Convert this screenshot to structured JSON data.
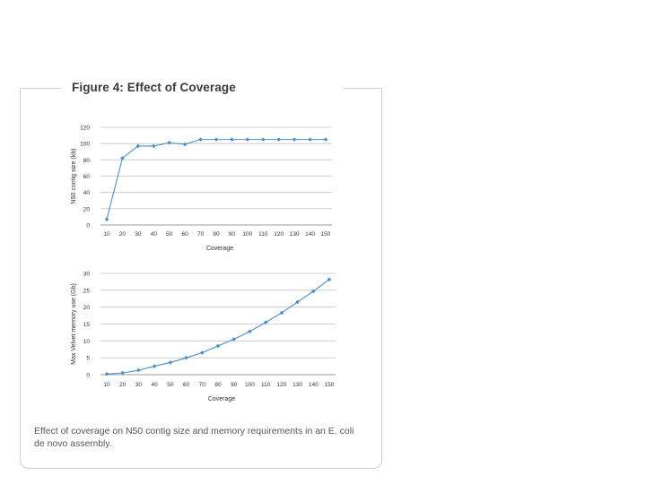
{
  "figure": {
    "title": "Figure 4: Effect of Coverage",
    "caption": "Effect of coverage on N50 contig size and memory requirements in an E. coli de novo assembly."
  },
  "colors": {
    "series": "#4a90c2",
    "grid": "#c4c4c4",
    "frame": "#cfcfcf"
  },
  "chart_data": [
    {
      "type": "line",
      "xlabel": "Coverage",
      "ylabel": "N50 contig size (kb)",
      "x": [
        10,
        20,
        30,
        40,
        50,
        60,
        70,
        80,
        90,
        100,
        110,
        120,
        130,
        140,
        150
      ],
      "x_tick_labels": [
        "10",
        "20",
        "30",
        "40",
        "50",
        "60",
        "70",
        "80",
        "90",
        "100",
        "110",
        "120",
        "130",
        "140",
        "150"
      ],
      "ylim": [
        0,
        120
      ],
      "y_ticks": [
        0,
        20,
        40,
        60,
        80,
        100,
        120
      ],
      "grid": true,
      "series": [
        {
          "values": [
            7,
            82,
            97,
            97,
            101,
            99,
            105,
            105,
            105,
            105,
            105,
            105,
            105,
            105,
            105
          ]
        }
      ]
    },
    {
      "type": "line",
      "xlabel": "Coverage",
      "ylabel": "Max Velvet memory use (Gb)",
      "x": [
        10,
        20,
        30,
        40,
        50,
        60,
        70,
        80,
        90,
        100,
        110,
        120,
        130,
        140,
        150
      ],
      "x_tick_labels": [
        "10",
        "20",
        "30",
        "40",
        "50",
        "60",
        "70",
        "80",
        "90",
        "100",
        "110",
        "120",
        "130",
        "140",
        "150"
      ],
      "ylim": [
        0,
        30
      ],
      "y_ticks": [
        0,
        5,
        10,
        15,
        20,
        25,
        30
      ],
      "grid": true,
      "series": [
        {
          "values": [
            0.2,
            0.5,
            1.3,
            2.5,
            3.6,
            5.0,
            6.5,
            8.5,
            10.5,
            12.8,
            15.5,
            18.3,
            21.5,
            24.7,
            28.2
          ]
        }
      ]
    }
  ]
}
